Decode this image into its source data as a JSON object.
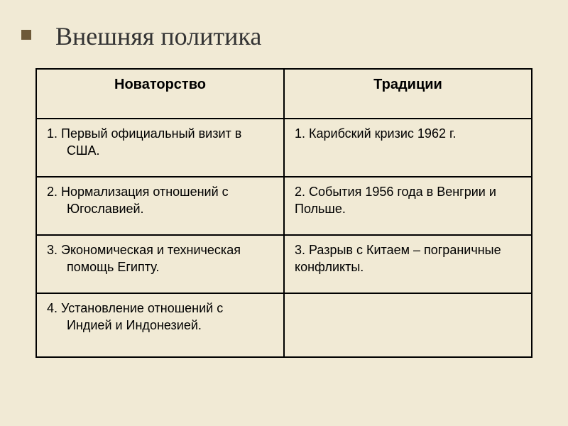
{
  "slide": {
    "title": "Внешняя политика",
    "background_color": "#f1ead5",
    "title_marker_color": "#6d5938",
    "title_fontsize": 36,
    "title_font": "Times New Roman",
    "table": {
      "border_color": "#000000",
      "header_fontsize": 20,
      "cell_fontsize": 18,
      "cell_font": "Arial",
      "columns": [
        {
          "header": "Новаторство"
        },
        {
          "header": "Традиции"
        }
      ],
      "rows": [
        {
          "left_num": "1. Первый официальный визит в",
          "left_cont": "США.",
          "right": "1. Карибский кризис 1962 г."
        },
        {
          "left_num": "2. Нормализация отношений с",
          "left_cont": "Югославией.",
          "right": "2. События 1956 года в Венгрии и Польше."
        },
        {
          "left_num": "3. Экономическая и техническая",
          "left_cont": "помощь Египту.",
          "right": "3. Разрыв с Китаем – пограничные конфликты."
        },
        {
          "left_num": "4. Установление отношений с",
          "left_cont": "Индией и Индонезией.",
          "right": ""
        }
      ]
    }
  }
}
